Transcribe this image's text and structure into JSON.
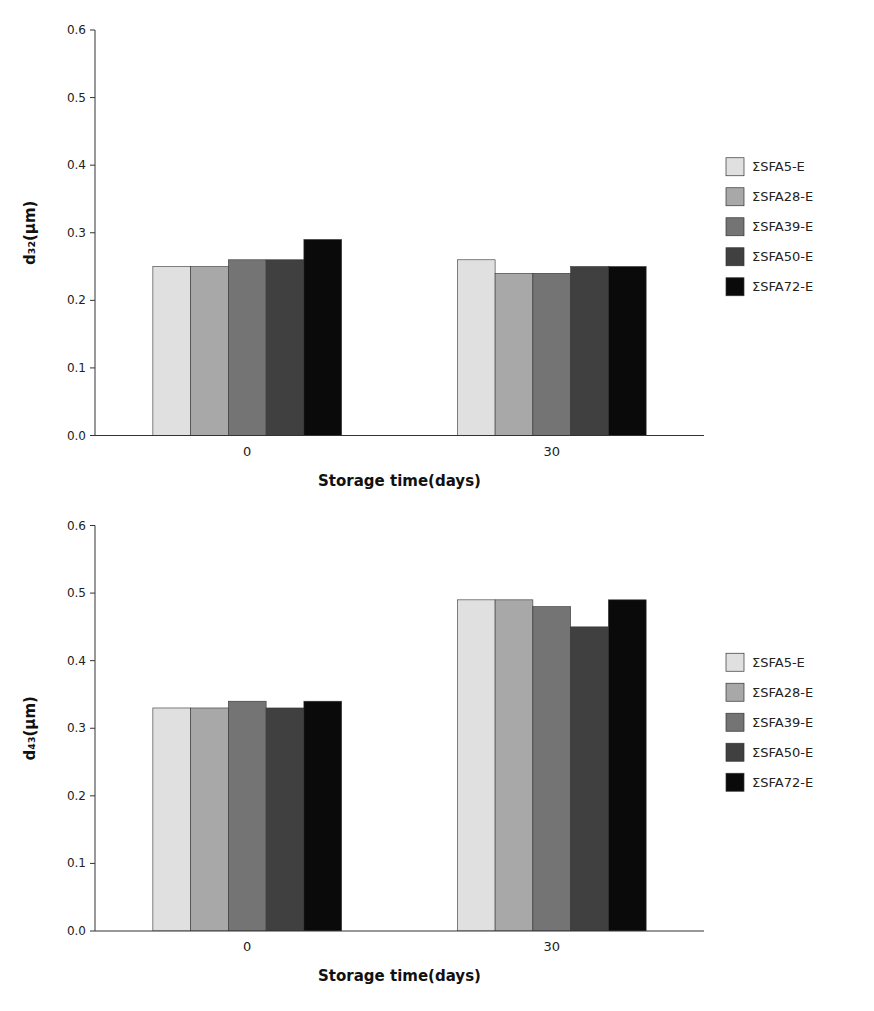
{
  "chart_data": [
    {
      "type": "bar",
      "ylabel": "d₃₂(μm)",
      "xlabel": "Storage time(days)",
      "categories": [
        "0",
        "30"
      ],
      "series": [
        {
          "name": "ΣSFA5-E",
          "color": "#e0e0e0",
          "values": [
            0.25,
            0.26
          ]
        },
        {
          "name": "ΣSFA28-E",
          "color": "#a8a8a8",
          "values": [
            0.25,
            0.24
          ]
        },
        {
          "name": "ΣSFA39-E",
          "color": "#747474",
          "values": [
            0.26,
            0.24
          ]
        },
        {
          "name": "ΣSFA50-E",
          "color": "#404040",
          "values": [
            0.26,
            0.25
          ]
        },
        {
          "name": "ΣSFA72-E",
          "color": "#0a0a0a",
          "values": [
            0.29,
            0.25
          ]
        }
      ],
      "ylim": [
        0,
        0.6
      ],
      "yticks": [
        {
          "value": 0,
          "label": "0.0"
        },
        0.1,
        0.2,
        0.3,
        0.4,
        0.5,
        0.6
      ],
      "grid": false,
      "legend": "right"
    },
    {
      "type": "bar",
      "ylabel": "d₄₃(μm)",
      "xlabel": "Storage time(days)",
      "categories": [
        "0",
        "30"
      ],
      "series": [
        {
          "name": "ΣSFA5-E",
          "color": "#e0e0e0",
          "values": [
            0.33,
            0.49
          ]
        },
        {
          "name": "ΣSFA28-E",
          "color": "#a8a8a8",
          "values": [
            0.33,
            0.49
          ]
        },
        {
          "name": "ΣSFA39-E",
          "color": "#747474",
          "values": [
            0.34,
            0.48
          ]
        },
        {
          "name": "ΣSFA50-E",
          "color": "#404040",
          "values": [
            0.33,
            0.45
          ]
        },
        {
          "name": "ΣSFA72-E",
          "color": "#0a0a0a",
          "values": [
            0.34,
            0.49
          ]
        }
      ],
      "ylim": [
        0,
        0.6
      ],
      "yticks": [
        {
          "value": 0,
          "label": "0.0"
        },
        0.1,
        0.2,
        0.3,
        0.4,
        0.5,
        0.6
      ],
      "grid": false,
      "legend": "right"
    }
  ]
}
